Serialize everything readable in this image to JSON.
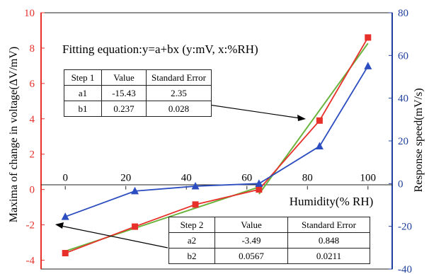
{
  "chart_data": {
    "type": "line",
    "equation": "Fitting equation:y=a+bx (y:mV, x:%RH)",
    "xlabel": "Humidity(% RH)",
    "ylabel_left": "Maxima of change in voltage(ΔV/mV)",
    "ylabel_right": "Response speed(mV/s)",
    "x_ticks": [
      "0",
      "20",
      "40",
      "60",
      "80",
      "100"
    ],
    "y_left_ticks": [
      "-4",
      "-2",
      "0",
      "2",
      "4",
      "6",
      "8",
      "10"
    ],
    "y_right_ticks": [
      "-40",
      "-20",
      "0",
      "20",
      "40",
      "60",
      "80"
    ],
    "xlim": [
      -8,
      108
    ],
    "ylim_left": [
      -4.5,
      10
    ],
    "ylim_right": [
      -40,
      80
    ],
    "grid": false,
    "colors": {
      "left_axis": "#e8302a",
      "right_axis": "#1f3f9e",
      "voltage": "#e8302a",
      "speed": "#2b4dbf",
      "fit": "#6ab43e"
    },
    "series": [
      {
        "axis": "left",
        "marker": "square",
        "x": [
          0,
          23,
          43,
          64,
          84,
          100
        ],
        "y": [
          -3.6,
          -2.1,
          -0.85,
          0.0,
          3.9,
          8.6
        ]
      },
      {
        "axis": "right",
        "marker": "triangle",
        "x": [
          0,
          23,
          43,
          64,
          84,
          100
        ],
        "y": [
          -15.5,
          -3.5,
          -1.2,
          0.0,
          17.5,
          55.0
        ]
      }
    ],
    "fit_lines": [
      {
        "x": [
          0,
          64
        ],
        "y": [
          -3.49,
          0.14
        ]
      },
      {
        "x": [
          64,
          100
        ],
        "y": [
          -0.26,
          8.27
        ]
      }
    ],
    "tables": [
      {
        "headers": [
          "Step 1",
          "Value",
          "Standard Error"
        ],
        "rows": [
          [
            "a1",
            "-15.43",
            "2.35"
          ],
          [
            "b1",
            "0.237",
            "0.028"
          ]
        ]
      },
      {
        "headers": [
          "Step 2",
          "Value",
          "Standard Error"
        ],
        "rows": [
          [
            "a2",
            "-3.49",
            "0.848"
          ],
          [
            "b2",
            "0.0567",
            "0.0211"
          ]
        ]
      }
    ]
  }
}
